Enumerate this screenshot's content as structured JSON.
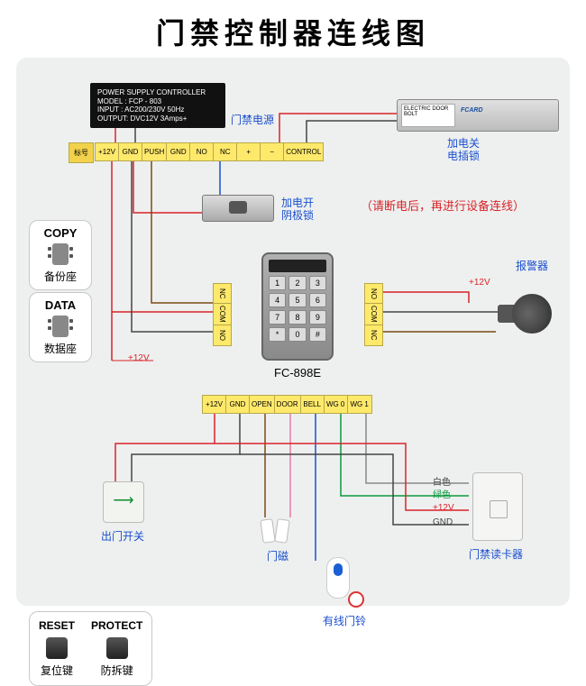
{
  "title": "门禁控制器连线图",
  "warning": "（请断电后，再进行设备连线）",
  "psu": {
    "line1": "POWER SUPPLY CONTROLLER",
    "line2": "MODEL : FCP - 803",
    "line3": "INPUT : AC200/230V  50Hz",
    "line4": "OUTPUT: DVC12V 3Amps+",
    "label_cn": "门禁电源"
  },
  "top_strip": {
    "tag": "标号",
    "cells": [
      "+12V",
      "GND",
      "PUSH",
      "GND",
      "NO",
      "NC",
      "+",
      "−",
      "CONTROL"
    ]
  },
  "left_strip_cells": [
    "NC",
    "COM",
    "NO"
  ],
  "right_strip_cells": [
    "NO",
    "COM",
    "NC"
  ],
  "bottom_strip_cells": [
    "+12V",
    "GND",
    "OPEN",
    "DOOR",
    "BELL",
    "WG 0",
    "WG 1"
  ],
  "keypad": {
    "model": "FC-898E",
    "keys": [
      "1",
      "2",
      "3",
      "4",
      "5",
      "6",
      "7",
      "8",
      "9",
      "*",
      "0",
      "#"
    ]
  },
  "copy_box": {
    "hdr": "COPY",
    "sub": "备份座"
  },
  "data_box": {
    "hdr": "DATA",
    "sub": "数据座"
  },
  "reset_box": {
    "left_hdr": "RESET",
    "left_sub": "复位键",
    "right_hdr": "PROTECT",
    "right_sub": "防拆键"
  },
  "labels": {
    "elock": "加电关\n电插锁",
    "strike": "加电开\n阴极锁",
    "alarm": "报警器",
    "alarm_v": "+12V",
    "exit": "出门开关",
    "sensor": "门磁",
    "bell": "有线门铃",
    "reader": "门禁读卡器",
    "plus12v": "+12V",
    "white": "白色",
    "green": "绿色",
    "plus12v_r": "+12V",
    "gnd_r": "GND"
  },
  "colors": {
    "red": "#d8232a",
    "blue": "#1a4fcf",
    "green": "#0a9a3f",
    "brown": "#7a4a12",
    "gray": "#444444",
    "pink": "#e67aa8"
  }
}
